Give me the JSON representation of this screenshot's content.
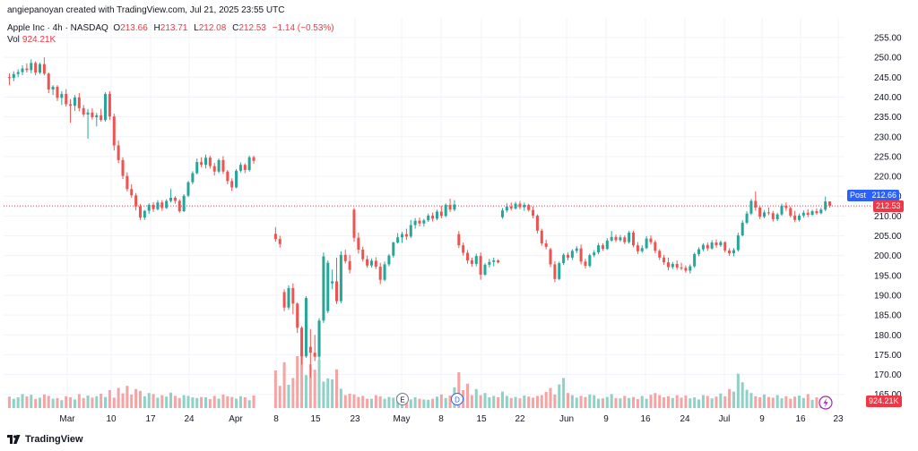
{
  "header": {
    "credit": "angiepanoyan created with TradingView.com, Jul 21, 2025 23:55 UTC",
    "symbol": "Apple Inc · 4h · NASDAQ",
    "open_label": "O",
    "open": "213.66",
    "high_label": "H",
    "high": "213.71",
    "low_label": "L",
    "low": "212.08",
    "close_label": "C",
    "close": "212.53",
    "change": "−1.14 (−0.53%)",
    "vol_label": "Vol",
    "vol": "924.21K"
  },
  "tags": {
    "post_label": "Post",
    "post_value": "212.66",
    "last_value": "212.53",
    "vol_value": "924.21K"
  },
  "markers": {
    "earnings": "E",
    "dividend": "D"
  },
  "footer": {
    "brand": "TradingView"
  },
  "colors": {
    "up": "#26a69a",
    "down": "#ef5350",
    "vol_up": "#8fd0c7",
    "vol_down": "#f5a3a3",
    "post": "#2962ff",
    "last": "#f23645"
  },
  "chart_data": {
    "type": "candlestick",
    "interval": "4h",
    "y_axis": {
      "ticks": [
        165,
        170,
        175,
        180,
        185,
        190,
        195,
        200,
        205,
        210,
        215,
        220,
        225,
        230,
        235,
        240,
        245,
        250,
        255
      ],
      "position": "right"
    },
    "x_axis": {
      "ticks": [
        "Mar",
        "10",
        "17",
        "24",
        "Apr",
        "8",
        "15",
        "23",
        "May",
        "8",
        "15",
        "22",
        "Jun",
        "9",
        "16",
        "24",
        "Jul",
        "9",
        "16",
        "23"
      ]
    },
    "post_price": 212.66,
    "last_price": 212.53,
    "ohlc": [
      [
        245,
        246,
        243,
        244.8
      ],
      [
        244.8,
        246.5,
        244,
        245.8
      ],
      [
        245.8,
        247,
        245,
        246.3
      ],
      [
        246.3,
        248,
        245.5,
        247.2
      ],
      [
        247.2,
        248.5,
        246.2,
        246.8
      ],
      [
        246.8,
        249.5,
        246,
        248.6
      ],
      [
        248.6,
        249,
        245.5,
        246.2
      ],
      [
        246.2,
        248.7,
        245.8,
        248.3
      ],
      [
        248.3,
        250,
        245.5,
        245.9
      ],
      [
        245.9,
        246.2,
        241,
        241.9
      ],
      [
        241.9,
        243,
        240.5,
        242.6
      ],
      [
        242.6,
        243,
        239,
        239.8
      ],
      [
        239.8,
        241.5,
        238,
        240.8
      ],
      [
        240.8,
        242,
        237.6,
        238.2
      ],
      [
        238.2,
        239.5,
        233.5,
        237.8
      ],
      [
        237.8,
        240.5,
        236.5,
        239.9
      ],
      [
        239.9,
        241,
        236.4,
        237.2
      ],
      [
        237.2,
        238,
        235,
        235.6
      ],
      [
        235.6,
        237,
        229.5,
        236.1
      ],
      [
        236.1,
        237.2,
        234.3,
        234.9
      ],
      [
        234.9,
        236,
        232.6,
        235.4
      ],
      [
        235.4,
        237,
        233.8,
        234.2
      ],
      [
        234.2,
        241.2,
        233.8,
        240.8
      ],
      [
        240.8,
        241.5,
        234.2,
        235.1
      ],
      [
        235.1,
        235.8,
        226.5,
        227.8
      ],
      [
        227.8,
        229,
        223.3,
        224.1
      ],
      [
        224.1,
        224.8,
        219.3,
        220.1
      ],
      [
        220.1,
        221,
        216.2,
        216.8
      ],
      [
        216.8,
        218,
        214.6,
        215.2
      ],
      [
        215.2,
        215.8,
        211.4,
        212.4
      ],
      [
        212.4,
        213,
        209,
        209.6
      ],
      [
        209.6,
        211.5,
        209,
        211.3
      ],
      [
        211.3,
        213.2,
        210.5,
        212.8
      ],
      [
        212.8,
        213.5,
        211,
        211.7
      ],
      [
        211.7,
        214,
        211.4,
        213.4
      ],
      [
        213.4,
        214,
        211.3,
        212
      ],
      [
        212,
        214.2,
        211.8,
        213.8
      ],
      [
        213.8,
        216.8,
        213.4,
        214.6
      ],
      [
        214.6,
        215,
        213.1,
        213.8
      ],
      [
        213.8,
        214.2,
        210.8,
        211.2
      ],
      [
        211.2,
        215.5,
        211,
        215.1
      ],
      [
        215.1,
        218.8,
        214.8,
        218.5
      ],
      [
        218.5,
        221.3,
        218,
        220.8
      ],
      [
        220.8,
        224.5,
        220.5,
        223.6
      ],
      [
        223.6,
        224.8,
        222.3,
        222.9
      ],
      [
        222.9,
        225.5,
        222,
        224.7
      ],
      [
        224.7,
        225.2,
        222,
        222.6
      ],
      [
        222.6,
        223.4,
        220.2,
        221.2
      ],
      [
        221.2,
        224.5,
        220.8,
        224.1
      ],
      [
        224.1,
        225.1,
        220.6,
        221.2
      ],
      [
        221.2,
        221.6,
        218,
        218.8
      ],
      [
        218.8,
        219.5,
        216.3,
        217.2
      ],
      [
        217.2,
        221.8,
        217,
        221.4
      ],
      [
        221.4,
        223.5,
        221,
        222.9
      ],
      [
        222.9,
        223.3,
        220.8,
        221.6
      ],
      [
        221.6,
        225.2,
        221.2,
        224.8
      ],
      [
        224.8,
        225.2,
        223.2,
        223.9
      ],
      [
        205.5,
        207.2,
        203.5,
        204.2
      ],
      [
        204.2,
        205,
        202,
        202.9
      ],
      [
        190.8,
        191.5,
        186,
        186.9
      ],
      [
        186.9,
        192.5,
        186.3,
        191.8
      ],
      [
        191.8,
        193,
        185.2,
        187.9
      ],
      [
        187.9,
        188.2,
        180.5,
        181.8
      ],
      [
        181.8,
        182.2,
        172.5,
        174.6
      ],
      [
        174.6,
        189.8,
        174.2,
        189.3
      ],
      [
        177,
        181.5,
        169.2,
        175.5
      ],
      [
        175.5,
        180,
        173.4,
        174.5
      ],
      [
        174.5,
        184.2,
        173.6,
        183.6
      ],
      [
        183.6,
        200.8,
        183,
        199.8
      ],
      [
        186,
        198.8,
        185.5,
        198.2
      ],
      [
        193,
        196.5,
        191.5,
        193.5
      ],
      [
        193.5,
        199.5,
        187.8,
        188.5
      ],
      [
        188.5,
        201.1,
        188,
        200.2
      ],
      [
        200.2,
        201.5,
        198,
        198.6
      ],
      [
        198.6,
        200.2,
        195.5,
        196.4
      ],
      [
        211.6,
        212,
        203.5,
        204.5
      ],
      [
        204.5,
        205.8,
        200.5,
        201.5
      ],
      [
        201.5,
        202.3,
        198.5,
        199.1
      ],
      [
        199.1,
        200,
        196.9,
        197.5
      ],
      [
        197.5,
        199.3,
        197,
        198.7
      ],
      [
        198.7,
        199.6,
        196.6,
        197.2
      ],
      [
        197.2,
        198.2,
        192.8,
        193.9
      ],
      [
        193.9,
        198.5,
        193.5,
        197.8
      ],
      [
        197.8,
        200.4,
        197.3,
        200
      ],
      [
        200,
        203.5,
        199.5,
        203.3
      ],
      [
        203.3,
        205.7,
        203,
        204.6
      ],
      [
        204.6,
        206,
        203.2,
        205.4
      ],
      [
        205.4,
        206.8,
        204,
        204.8
      ],
      [
        204.8,
        209,
        204.4,
        207.7
      ],
      [
        207.7,
        209.5,
        206.8,
        208.8
      ],
      [
        208.8,
        209.6,
        207.4,
        208.1
      ],
      [
        208.1,
        209.3,
        207.3,
        208.9
      ],
      [
        208.9,
        210.6,
        208.5,
        210.1
      ],
      [
        210.1,
        210.9,
        208.6,
        209.3
      ],
      [
        209.3,
        211.6,
        208.9,
        211.1
      ],
      [
        211.1,
        212.6,
        209.4,
        210
      ],
      [
        210,
        213.2,
        209.7,
        212.8
      ],
      [
        212.8,
        214.4,
        211,
        211.6
      ],
      [
        211.6,
        214,
        211.2,
        212.9
      ],
      [
        205.4,
        206.2,
        201.9,
        202.6
      ],
      [
        202.6,
        203.3,
        200,
        200.7
      ],
      [
        200.7,
        201.4,
        198,
        198.8
      ],
      [
        198.8,
        199.5,
        197.2,
        197.9
      ],
      [
        197.9,
        200.5,
        197.3,
        199.9
      ],
      [
        199.9,
        200.8,
        193.9,
        195.2
      ],
      [
        195.2,
        198.1,
        194.9,
        197.7
      ],
      [
        197.7,
        199.2,
        197,
        198.4
      ],
      [
        198.4,
        199.5,
        197.3,
        198.8
      ],
      [
        198.8,
        199.1,
        198,
        198.3
      ],
      [
        209.7,
        212,
        209.3,
        211.4
      ],
      [
        211.4,
        213.2,
        210.9,
        212.4
      ],
      [
        212.4,
        213.4,
        211.4,
        211.9
      ],
      [
        211.9,
        213.6,
        211.6,
        213.1
      ],
      [
        213.1,
        213.8,
        211.7,
        212.2
      ],
      [
        212.2,
        213.4,
        211.3,
        212.8
      ],
      [
        212.8,
        213.1,
        211.1,
        211.5
      ],
      [
        211.5,
        212.4,
        209.4,
        210.1
      ],
      [
        210.1,
        210.4,
        205.6,
        206.3
      ],
      [
        206.3,
        206.8,
        202.5,
        203.1
      ],
      [
        203.1,
        204,
        201.6,
        202.2
      ],
      [
        201.6,
        202,
        197.1,
        197.8
      ],
      [
        197.8,
        198.6,
        193.3,
        194.1
      ],
      [
        194.1,
        198.5,
        193.8,
        198.1
      ],
      [
        198.1,
        200.6,
        197.6,
        200.2
      ],
      [
        200.2,
        200.8,
        198.8,
        199.5
      ],
      [
        199.5,
        201.6,
        198.9,
        201.2
      ],
      [
        201.2,
        202.4,
        200.6,
        201.8
      ],
      [
        201.8,
        202.8,
        197.8,
        198.5
      ],
      [
        198.5,
        199.2,
        196.7,
        197.4
      ],
      [
        197.4,
        200.5,
        197,
        200.1
      ],
      [
        200.1,
        201.4,
        199.6,
        200.8
      ],
      [
        200.8,
        203.2,
        200.3,
        202.6
      ],
      [
        202.6,
        203.1,
        201.2,
        201.7
      ],
      [
        201.7,
        204.4,
        201.4,
        203.8
      ],
      [
        203.8,
        206.2,
        203.5,
        204.7
      ],
      [
        204.7,
        205.3,
        203.4,
        203.9
      ],
      [
        203.9,
        205.2,
        203.5,
        204.6
      ],
      [
        204.6,
        205.1,
        202.9,
        203.4
      ],
      [
        203.4,
        206.3,
        203,
        205.8
      ],
      [
        205.8,
        206.3,
        202.1,
        202.6
      ],
      [
        202.6,
        203.4,
        200.4,
        201.1
      ],
      [
        201.1,
        202.6,
        200.7,
        201.9
      ],
      [
        201.9,
        204.9,
        201.6,
        204.3
      ],
      [
        204.3,
        205.1,
        202.8,
        203.4
      ],
      [
        203.4,
        203.9,
        200.6,
        201.2
      ],
      [
        201.2,
        201.6,
        198.9,
        199.5
      ],
      [
        199.5,
        200.2,
        197.7,
        198.3
      ],
      [
        198.3,
        199.5,
        196.3,
        197.1
      ],
      [
        197.1,
        198.4,
        196.6,
        197.9
      ],
      [
        197.9,
        198.8,
        196.4,
        197
      ],
      [
        197,
        198.2,
        196.3,
        196.9
      ],
      [
        196.9,
        197.5,
        195.7,
        196.2
      ],
      [
        196.2,
        197.8,
        195.5,
        197.3
      ],
      [
        197.3,
        200.8,
        196.9,
        200.4
      ],
      [
        200.4,
        202.1,
        199.8,
        201.6
      ],
      [
        201.6,
        203.1,
        201.1,
        202.7
      ],
      [
        202.7,
        203.3,
        201.2,
        201.8
      ],
      [
        201.8,
        203.9,
        201.5,
        203.3
      ],
      [
        203.3,
        204.1,
        202,
        202.6
      ],
      [
        202.6,
        203.8,
        202.2,
        203.4
      ],
      [
        203.4,
        203.6,
        200.8,
        201.3
      ],
      [
        201.3,
        201.9,
        199.9,
        200.6
      ],
      [
        200.6,
        201.9,
        199.8,
        201.4
      ],
      [
        201.4,
        205.8,
        201,
        205.1
      ],
      [
        205.1,
        208.9,
        204.8,
        208.3
      ],
      [
        208.3,
        211.2,
        207.9,
        210.6
      ],
      [
        210.6,
        214.3,
        210.2,
        213.8
      ],
      [
        213.8,
        216.2,
        211.4,
        212.1
      ],
      [
        212.1,
        212.6,
        209.2,
        209.8
      ],
      [
        209.8,
        211.5,
        209.4,
        210.9
      ],
      [
        210.9,
        212.1,
        210.2,
        210.7
      ],
      [
        210.7,
        211.3,
        208.6,
        209.2
      ],
      [
        209.2,
        210.8,
        208.7,
        210.4
      ],
      [
        210.4,
        213.1,
        210,
        212.6
      ],
      [
        212.6,
        213.4,
        211.3,
        212
      ],
      [
        212,
        212.4,
        209.6,
        210.1
      ],
      [
        210.1,
        211.3,
        208.4,
        209
      ],
      [
        209,
        210.6,
        208.6,
        210.1
      ],
      [
        210.1,
        211.4,
        209.6,
        210.8
      ],
      [
        210.8,
        211.7,
        209.7,
        210.3
      ],
      [
        210.3,
        211.6,
        210,
        211.2
      ],
      [
        211.2,
        211.9,
        210.3,
        210.7
      ],
      [
        210.7,
        212.1,
        210.4,
        211.6
      ],
      [
        211.6,
        214.9,
        211.2,
        213.66
      ],
      [
        213.66,
        213.71,
        212.08,
        212.53
      ]
    ],
    "volume": [
      3.2,
      2.6,
      3.0,
      3.9,
      3.3,
      3.7,
      2.5,
      2.9,
      3.8,
      3.4,
      2.6,
      2.8,
      2.2,
      3.3,
      3.0,
      2.4,
      3.9,
      2.8,
      3.5,
      2.9,
      3.3,
      4.0,
      3.1,
      5.0,
      2.9,
      5.6,
      4.1,
      6.2,
      3.8,
      5.3,
      4.8,
      3.3,
      4.2,
      3.9,
      2.9,
      3.6,
      3.2,
      4.3,
      3.4,
      2.8,
      3.6,
      3.4,
      3.0,
      2.8,
      3.1,
      3.0,
      2.5,
      3.4,
      2.6,
      3.8,
      3.3,
      3.1,
      2.6,
      3.3,
      3.0,
      2.2,
      3.5,
      10.5,
      6.2,
      12.8,
      6.5,
      8.4,
      14.5,
      15.6,
      9.2,
      12.2,
      10.7,
      13.4,
      7.4,
      8.3,
      8.0,
      10.8,
      5.4,
      3.6,
      4.0,
      3.8,
      3.1,
      3.4,
      2.6,
      2.6,
      3.6,
      3.3,
      2.6,
      3.1,
      2.9,
      3.4,
      2.3,
      3.3,
      2.4,
      3.0,
      2.6,
      2.4,
      2.3,
      2.6,
      3.2,
      3.8,
      2.8,
      3.5,
      5.8,
      10.0,
      5.0,
      6.8,
      3.6,
      5.3,
      3.6,
      4.2,
      3.0,
      3.4,
      3.0,
      4.6,
      3.4,
      2.8,
      3.1,
      2.7,
      3.5,
      3.2,
      2.9,
      3.4,
      3.6,
      4.5,
      5.6,
      3.8,
      6.6,
      8.4,
      4.2,
      3.6,
      2.9,
      3.4,
      3.1,
      3.8,
      3.6,
      2.6,
      2.7,
      3.1,
      3.9,
      2.8,
      2.7,
      3.4,
      2.8,
      3.1,
      2.5,
      3.4,
      2.6,
      3.7,
      4.2,
      3.6,
      3.0,
      3.3,
      2.8,
      3.6,
      2.9,
      3.5,
      2.7,
      3.0,
      2.4,
      3.6,
      3.4,
      2.7,
      3.2,
      4.1,
      3.3,
      5.3,
      4.6,
      9.6,
      7.2,
      5.1,
      4.2,
      3.3,
      3.0,
      3.8,
      3.1,
      2.9,
      3.6,
      2.7,
      3.3,
      2.6,
      3.2,
      3.5,
      2.8,
      3.9,
      2.3,
      3.0,
      2.2
    ],
    "x_gaps": [
      {
        "after": 56,
        "label": "weekend"
      }
    ]
  }
}
